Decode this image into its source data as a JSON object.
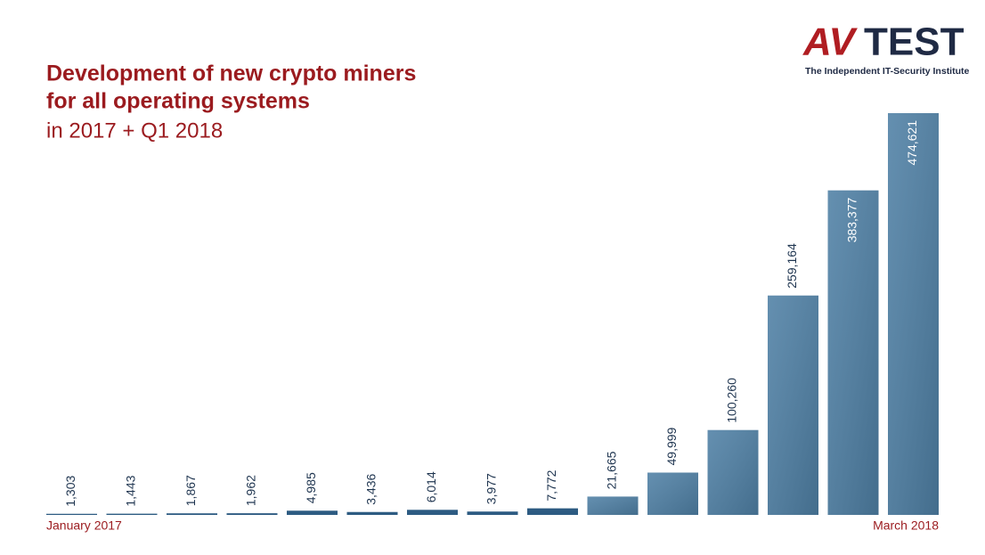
{
  "logo": {
    "mark": "AV",
    "name": "TEST",
    "tagline": "The Independent IT-Security Institute"
  },
  "chart_data": {
    "type": "bar",
    "title": [
      "Development of new crypto miners",
      "for all operating systems"
    ],
    "subtitle": "in 2017 + Q1 2018",
    "categories": [
      "January 2017",
      null,
      null,
      null,
      null,
      null,
      null,
      null,
      null,
      null,
      null,
      null,
      null,
      null,
      "March 2018"
    ],
    "values": [
      1303,
      1443,
      1867,
      1962,
      4985,
      3436,
      6014,
      3977,
      7772,
      21665,
      49999,
      100260,
      259164,
      383377,
      474621
    ],
    "value_labels": [
      "1,303",
      "1,443",
      "1,867",
      "1,962",
      "4,985",
      "3,436",
      "6,014",
      "3,977",
      "7,772",
      "21,665",
      "49,999",
      "100,260",
      "259,164",
      "383,377",
      "474,621"
    ],
    "color": "#4f80a5"
  }
}
